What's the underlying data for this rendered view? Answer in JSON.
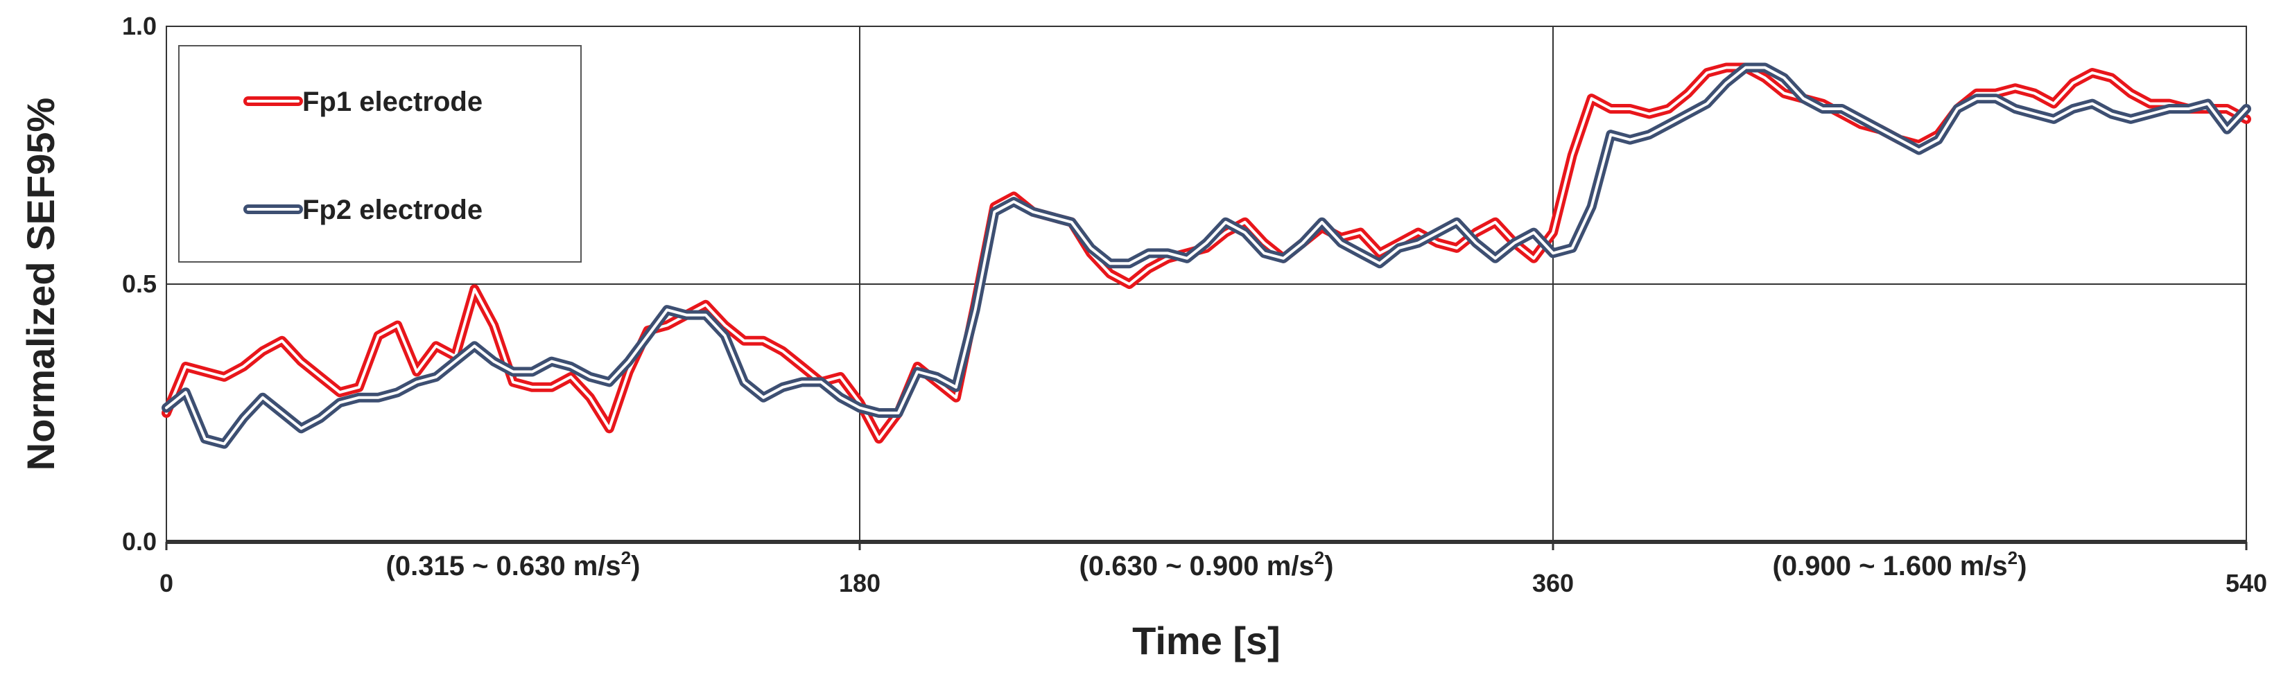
{
  "chart_data": {
    "type": "line",
    "xlabel": "Time [s]",
    "ylabel": "Normalized SEF95%",
    "xlim": [
      0,
      540
    ],
    "ylim": [
      0.0,
      1.0
    ],
    "x_ticks": [
      0,
      180,
      360,
      540
    ],
    "x_tick_labels": [
      "0",
      "180",
      "360",
      "540"
    ],
    "y_ticks": [
      0.0,
      0.5,
      1.0
    ],
    "y_tick_labels": [
      "0.0",
      "0.5",
      "1.0"
    ],
    "grid": true,
    "legend_position": "top-left",
    "segments": [
      {
        "label_main": "(0.315 ~ 0.630 m/s",
        "sup": "2",
        "close": ")",
        "x_start": 0,
        "x_end": 180
      },
      {
        "label_main": "(0.630 ~ 0.900 m/s",
        "sup": "2",
        "close": ")",
        "x_start": 180,
        "x_end": 360
      },
      {
        "label_main": "(0.900 ~ 1.600 m/s",
        "sup": "2",
        "close": ")",
        "x_start": 360,
        "x_end": 540
      }
    ],
    "series": [
      {
        "name": "Fp1 electrode",
        "color": "#e8161b",
        "x": [
          0,
          5,
          10,
          15,
          20,
          25,
          30,
          35,
          40,
          45,
          50,
          55,
          60,
          65,
          70,
          75,
          80,
          85,
          90,
          95,
          100,
          105,
          110,
          115,
          120,
          125,
          130,
          135,
          140,
          145,
          150,
          155,
          160,
          165,
          170,
          175,
          180,
          185,
          190,
          195,
          200,
          205,
          210,
          215,
          220,
          225,
          230,
          235,
          240,
          245,
          250,
          255,
          260,
          265,
          270,
          275,
          280,
          285,
          290,
          295,
          300,
          305,
          310,
          315,
          320,
          325,
          330,
          335,
          340,
          345,
          350,
          355,
          360,
          365,
          370,
          375,
          380,
          385,
          390,
          395,
          400,
          405,
          410,
          415,
          420,
          425,
          430,
          435,
          440,
          445,
          450,
          455,
          460,
          465,
          470,
          475,
          480,
          485,
          490,
          495,
          500,
          505,
          510,
          515,
          520,
          525,
          530,
          535,
          540
        ],
        "values": [
          0.25,
          0.34,
          0.33,
          0.32,
          0.34,
          0.37,
          0.39,
          0.35,
          0.32,
          0.29,
          0.3,
          0.4,
          0.42,
          0.33,
          0.38,
          0.36,
          0.49,
          0.42,
          0.31,
          0.3,
          0.3,
          0.32,
          0.28,
          0.22,
          0.33,
          0.41,
          0.42,
          0.44,
          0.46,
          0.42,
          0.39,
          0.39,
          0.37,
          0.34,
          0.31,
          0.32,
          0.27,
          0.2,
          0.25,
          0.34,
          0.31,
          0.28,
          0.46,
          0.65,
          0.67,
          0.64,
          0.63,
          0.62,
          0.56,
          0.52,
          0.5,
          0.53,
          0.55,
          0.56,
          0.57,
          0.6,
          0.62,
          0.58,
          0.55,
          0.58,
          0.61,
          0.59,
          0.6,
          0.56,
          0.58,
          0.6,
          0.58,
          0.57,
          0.6,
          0.62,
          0.58,
          0.55,
          0.6,
          0.75,
          0.86,
          0.84,
          0.84,
          0.83,
          0.84,
          0.87,
          0.91,
          0.92,
          0.92,
          0.9,
          0.87,
          0.86,
          0.85,
          0.83,
          0.81,
          0.8,
          0.78,
          0.77,
          0.79,
          0.84,
          0.87,
          0.87,
          0.88,
          0.87,
          0.85,
          0.89,
          0.91,
          0.9,
          0.87,
          0.85,
          0.85,
          0.84,
          0.84,
          0.84,
          0.82
        ]
      },
      {
        "name": "Fp2 electrode",
        "color": "#3d4f72",
        "x": [
          0,
          5,
          10,
          15,
          20,
          25,
          30,
          35,
          40,
          45,
          50,
          55,
          60,
          65,
          70,
          75,
          80,
          85,
          90,
          95,
          100,
          105,
          110,
          115,
          120,
          125,
          130,
          135,
          140,
          145,
          150,
          155,
          160,
          165,
          170,
          175,
          180,
          185,
          190,
          195,
          200,
          205,
          210,
          215,
          220,
          225,
          230,
          235,
          240,
          245,
          250,
          255,
          260,
          265,
          270,
          275,
          280,
          285,
          290,
          295,
          300,
          305,
          310,
          315,
          320,
          325,
          330,
          335,
          340,
          345,
          350,
          355,
          360,
          365,
          370,
          375,
          380,
          385,
          390,
          395,
          400,
          405,
          410,
          415,
          420,
          425,
          430,
          435,
          440,
          445,
          450,
          455,
          460,
          465,
          470,
          475,
          480,
          485,
          490,
          495,
          500,
          505,
          510,
          515,
          520,
          525,
          530,
          535,
          540
        ],
        "values": [
          0.26,
          0.29,
          0.2,
          0.19,
          0.24,
          0.28,
          0.25,
          0.22,
          0.24,
          0.27,
          0.28,
          0.28,
          0.29,
          0.31,
          0.32,
          0.35,
          0.38,
          0.35,
          0.33,
          0.33,
          0.35,
          0.34,
          0.32,
          0.31,
          0.35,
          0.4,
          0.45,
          0.44,
          0.44,
          0.4,
          0.31,
          0.28,
          0.3,
          0.31,
          0.31,
          0.28,
          0.26,
          0.25,
          0.25,
          0.33,
          0.32,
          0.3,
          0.45,
          0.64,
          0.66,
          0.64,
          0.63,
          0.62,
          0.57,
          0.54,
          0.54,
          0.56,
          0.56,
          0.55,
          0.58,
          0.62,
          0.6,
          0.56,
          0.55,
          0.58,
          0.62,
          0.58,
          0.56,
          0.54,
          0.57,
          0.58,
          0.6,
          0.62,
          0.58,
          0.55,
          0.58,
          0.6,
          0.56,
          0.57,
          0.65,
          0.79,
          0.78,
          0.79,
          0.81,
          0.83,
          0.85,
          0.89,
          0.92,
          0.92,
          0.9,
          0.86,
          0.84,
          0.84,
          0.82,
          0.8,
          0.78,
          0.76,
          0.78,
          0.84,
          0.86,
          0.86,
          0.84,
          0.83,
          0.82,
          0.84,
          0.85,
          0.83,
          0.82,
          0.83,
          0.84,
          0.84,
          0.85,
          0.8,
          0.84
        ]
      }
    ]
  }
}
